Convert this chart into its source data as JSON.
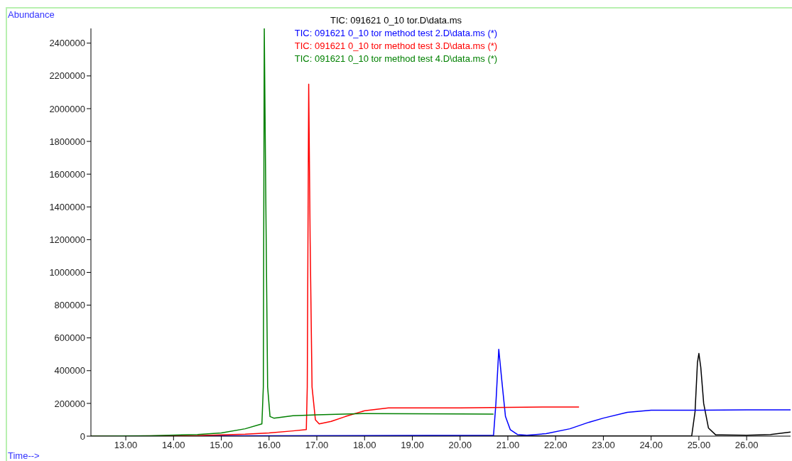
{
  "chart_data": {
    "type": "line",
    "xlabel": "Time-->",
    "ylabel": "Abundance",
    "xlim": [
      12.27,
      26.92
    ],
    "ylim": [
      0,
      2490000
    ],
    "xticks": [
      {
        "value": 13,
        "label": "13.00"
      },
      {
        "value": 14,
        "label": "14.00"
      },
      {
        "value": 15,
        "label": "15.00"
      },
      {
        "value": 16,
        "label": "16.00"
      },
      {
        "value": 17,
        "label": "17.00"
      },
      {
        "value": 18,
        "label": "18.00"
      },
      {
        "value": 19,
        "label": "19.00"
      },
      {
        "value": 20,
        "label": "20.00"
      },
      {
        "value": 21,
        "label": "21.00"
      },
      {
        "value": 22,
        "label": "22.00"
      },
      {
        "value": 23,
        "label": "23.00"
      },
      {
        "value": 24,
        "label": "24.00"
      },
      {
        "value": 25,
        "label": "25.00"
      },
      {
        "value": 26,
        "label": "26.00"
      }
    ],
    "yticks": [
      0,
      200000,
      400000,
      600000,
      800000,
      1000000,
      1200000,
      1400000,
      1600000,
      1800000,
      2000000,
      2200000,
      2400000
    ],
    "grid": false,
    "legend": "top",
    "marker": "none",
    "line_style": "solid",
    "series": [
      {
        "name": "TIC: 091621 0_10 tor.D\\data.ms",
        "color": "#000000",
        "x": [
          12.27,
          20,
          24.85,
          24.92,
          24.97,
          25.0,
          25.04,
          25.1,
          25.2,
          25.35,
          26.0,
          26.5,
          26.92
        ],
        "values": [
          0,
          0,
          2000,
          150000,
          450000,
          505000,
          420000,
          200000,
          50000,
          8000,
          5000,
          10000,
          25000
        ]
      },
      {
        "name": "TIC: 091621 0_10 tor method test 2.D\\data.ms (*)",
        "color": "#0000ff",
        "x": [
          12.27,
          16,
          20.7,
          20.75,
          20.81,
          20.87,
          20.95,
          21.05,
          21.2,
          21.4,
          21.8,
          22.3,
          22.7,
          23.0,
          23.5,
          24.0,
          25.0,
          26.0,
          26.92
        ],
        "values": [
          0,
          2000,
          5000,
          200000,
          530000,
          350000,
          120000,
          40000,
          10000,
          5000,
          15000,
          45000,
          85000,
          110000,
          145000,
          158000,
          158000,
          160000,
          160000
        ]
      },
      {
        "name": "TIC: 091621 0_10 tor method test 3.D\\data.ms (*)",
        "color": "#ff0000",
        "x": [
          12.27,
          14.5,
          15.5,
          16.0,
          16.5,
          16.78,
          16.8,
          16.83,
          16.86,
          16.9,
          16.97,
          17.05,
          17.3,
          17.6,
          18.0,
          18.5,
          19.0,
          20.0,
          21.0,
          22.0,
          22.49
        ],
        "values": [
          0,
          3000,
          12000,
          20000,
          32000,
          40000,
          300000,
          2150000,
          1200000,
          300000,
          100000,
          75000,
          90000,
          120000,
          155000,
          172000,
          172000,
          172000,
          176000,
          178000,
          178000
        ]
      },
      {
        "name": "TIC: 091621 0_10 tor method test 4.D\\data.ms (*)",
        "color": "#008000",
        "x": [
          12.27,
          13.5,
          14.5,
          15.0,
          15.5,
          15.85,
          15.88,
          15.9,
          15.93,
          15.97,
          16.02,
          16.1,
          16.5,
          17.0,
          18.0,
          19.0,
          20.0,
          20.7
        ],
        "values": [
          0,
          2000,
          10000,
          20000,
          45000,
          75000,
          300000,
          2490000,
          1500000,
          300000,
          120000,
          110000,
          125000,
          130000,
          138000,
          137000,
          136000,
          135000
        ]
      }
    ]
  }
}
